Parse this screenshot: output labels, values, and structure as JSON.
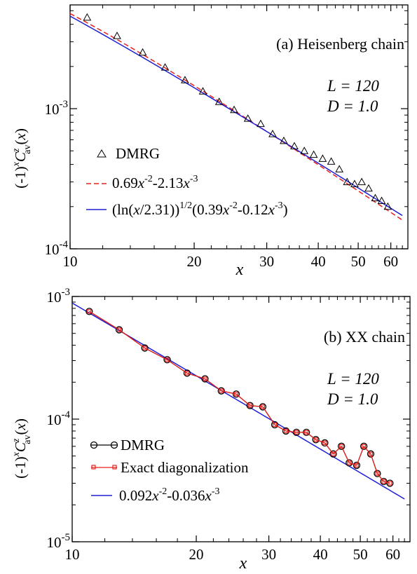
{
  "chart_data": [
    {
      "type": "line",
      "panel_label": "(a) Heisenberg chain",
      "params": [
        "L = 120",
        "D = 1.0"
      ],
      "xlabel": "x",
      "ylabel": "(-1)^x C^z_av(x)",
      "x_scale": "log",
      "y_scale": "log",
      "xlim": [
        10,
        66
      ],
      "ylim": [
        0.0001,
        0.0055
      ],
      "x_ticks": [
        10,
        20,
        30,
        40,
        50,
        60
      ],
      "x_tick_labels": [
        "10",
        "20",
        "30",
        "40",
        "50",
        "60"
      ],
      "y_ticks": [
        0.0001,
        0.001
      ],
      "y_tick_labels": [
        {
          "base": "10",
          "exp": "-4"
        },
        {
          "base": "10",
          "exp": "-3"
        }
      ],
      "series": [
        {
          "name": "DMRG",
          "kind": "markers",
          "marker": "triangle",
          "color": "#000000",
          "x": [
            11,
            13,
            15,
            17,
            19,
            21,
            23,
            25,
            27,
            29,
            31,
            33,
            35,
            37,
            39,
            41,
            43,
            45,
            47,
            49,
            51,
            53,
            55,
            57,
            59
          ],
          "y": [
            0.00448,
            0.00331,
            0.00252,
            0.00197,
            0.0016,
            0.00133,
            0.00112,
            0.00098,
            0.00085,
            0.00078,
            0.00066,
            0.00059,
            0.00054,
            0.0005,
            0.00047,
            0.00044,
            0.00042,
            0.00037,
            0.0003,
            0.00029,
            0.0003,
            0.00027,
            0.00023,
            0.00022,
            0.0002
          ]
        },
        {
          "name": "0.69x^-2-2.13x^-3",
          "kind": "function",
          "style": "dashed",
          "color": "#e8201c",
          "coef": [
            0.69,
            -2.13
          ],
          "x_range": [
            10,
            64
          ]
        },
        {
          "name": "(ln(x/2.31))^1/2(0.39x^-2-0.12x^-3)",
          "kind": "function_log",
          "style": "solid",
          "color": "#1f1fd6",
          "x0": 2.31,
          "coef": [
            0.39,
            -0.12
          ],
          "x_range": [
            10,
            64
          ]
        }
      ],
      "legend_position": "bottom-left"
    },
    {
      "type": "line",
      "panel_label": "(b) XX chain",
      "params": [
        "L = 120",
        "D = 1.0"
      ],
      "xlabel": "x",
      "ylabel": "(-1)^x C^z_av(x)",
      "x_scale": "log",
      "y_scale": "log",
      "xlim": [
        10,
        66
      ],
      "ylim": [
        1e-05,
        0.001
      ],
      "x_ticks": [
        10,
        20,
        30,
        40,
        50,
        60
      ],
      "x_tick_labels": [
        "10",
        "20",
        "30",
        "40",
        "50",
        "60"
      ],
      "y_ticks": [
        1e-05,
        0.0001,
        0.001
      ],
      "y_tick_labels": [
        {
          "base": "10",
          "exp": "-5"
        },
        {
          "base": "10",
          "exp": "-4"
        },
        {
          "base": "10",
          "exp": "-3"
        }
      ],
      "series": [
        {
          "name": "DMRG",
          "kind": "markers_line",
          "marker": "circle",
          "color": "#000000",
          "x": [
            11,
            13,
            15,
            17,
            19,
            21,
            23,
            25,
            27,
            29,
            31,
            33,
            35,
            37,
            39,
            41,
            43,
            45,
            47,
            49,
            51,
            53,
            55,
            57,
            59
          ],
          "y": [
            0.000755,
            0.000535,
            0.00038,
            0.000305,
            0.000237,
            0.000213,
            0.00017,
            0.00016,
            0.000129,
            0.000126,
            9e-05,
            8e-05,
            7.8e-05,
            7.8e-05,
            6.8e-05,
            6.4e-05,
            5.2e-05,
            6e-05,
            4.4e-05,
            4.2e-05,
            6e-05,
            5.2e-05,
            3.6e-05,
            3.1e-05,
            3e-05
          ]
        },
        {
          "name": "Exact diagonalization",
          "kind": "markers_line",
          "marker": "square",
          "color": "#e8201c",
          "x": [
            11,
            13,
            15,
            17,
            19,
            21,
            23,
            25,
            27,
            29,
            31,
            33,
            35,
            37,
            39,
            41,
            43,
            45,
            47,
            49,
            51,
            53,
            55,
            57,
            59
          ],
          "y": [
            0.000755,
            0.000535,
            0.00038,
            0.000305,
            0.000237,
            0.000213,
            0.00017,
            0.00016,
            0.000129,
            0.000126,
            9e-05,
            8e-05,
            7.8e-05,
            7.8e-05,
            6.8e-05,
            6.4e-05,
            5.2e-05,
            6e-05,
            4.4e-05,
            4.2e-05,
            6e-05,
            5.2e-05,
            3.6e-05,
            3.1e-05,
            3e-05
          ]
        },
        {
          "name": "0.092x^-2-0.036x^-3",
          "kind": "function",
          "style": "solid",
          "color": "#1f1fd6",
          "coef": [
            0.092,
            -0.036
          ],
          "x_range": [
            10,
            64
          ]
        }
      ],
      "legend_position": "bottom-left"
    }
  ]
}
